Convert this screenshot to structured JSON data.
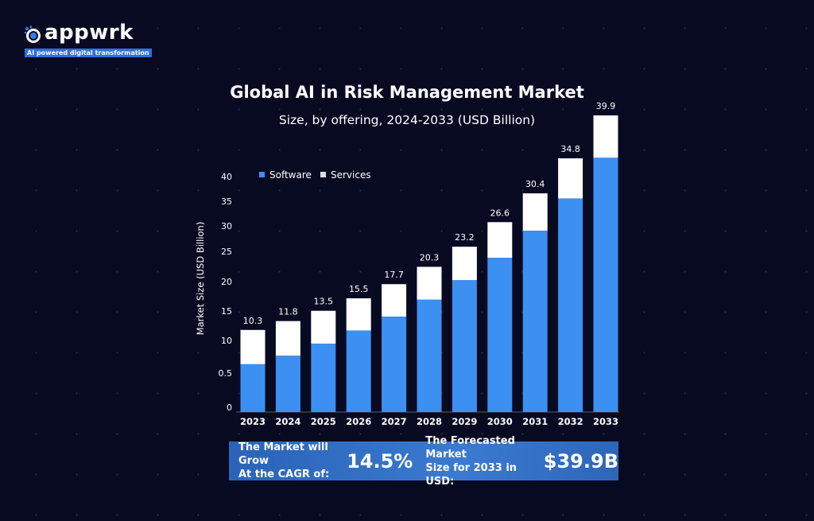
{
  "logo": {
    "name": "appwrk",
    "tagline": "AI powered digital transformation"
  },
  "header": {
    "title": "Global AI in Risk Management Market",
    "subtitle": "Size, by offering, 2024-2033 (USD Billion)"
  },
  "colors": {
    "software": "#3b90f2",
    "services": "#ffffff",
    "background": "#080a22"
  },
  "chart_data": {
    "type": "bar",
    "stacked": true,
    "title": "Global AI in Risk Management Market",
    "ylabel": "Market Size (USD Billion)",
    "xlabel": "",
    "y_tick_labels": [
      "0",
      "0.5",
      "10",
      "15",
      "20",
      "25",
      "30",
      "35",
      "40"
    ],
    "categories": [
      "2023",
      "2024",
      "2025",
      "2026",
      "2027",
      "2028",
      "2029",
      "2030",
      "2031",
      "2032",
      "2033"
    ],
    "totals": [
      10.3,
      11.8,
      13.5,
      15.5,
      17.7,
      20.3,
      23.2,
      26.6,
      30.4,
      34.8,
      39.9
    ],
    "total_labels": [
      "10.3",
      "11.8",
      "13.5",
      "15.5",
      "17.7",
      "20.3",
      "23.2",
      "26.6",
      "30.4",
      "34.8",
      "39.9"
    ],
    "series": [
      {
        "name": "Software",
        "values": [
          6.0,
          7.3,
          9.1,
          11.1,
          13.2,
          15.7,
          18.5,
          21.6,
          25.2,
          29.3,
          34.2
        ]
      },
      {
        "name": "Services",
        "values": [
          4.3,
          4.5,
          4.4,
          4.4,
          4.5,
          4.6,
          4.7,
          5.0,
          5.2,
          5.5,
          5.7
        ]
      }
    ],
    "legend": "top-left",
    "grid": false
  },
  "banner": {
    "cagr_label_1": "The Market will Grow",
    "cagr_label_2": "At the CAGR of:",
    "cagr_value": "14.5%",
    "forecast_label_1": "The Forecasted Market",
    "forecast_label_2": "Size for 2033 in USD:",
    "forecast_value": "$39.9B"
  }
}
